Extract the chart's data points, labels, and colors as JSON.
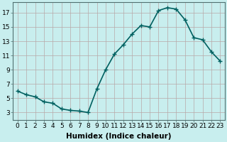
{
  "x": [
    0,
    1,
    2,
    3,
    4,
    5,
    6,
    7,
    8,
    9,
    10,
    11,
    12,
    13,
    14,
    15,
    16,
    17,
    18,
    19,
    20,
    21,
    22,
    23
  ],
  "y": [
    6.0,
    5.5,
    5.2,
    4.5,
    4.3,
    3.5,
    3.3,
    3.2,
    3.0,
    6.3,
    9.0,
    11.2,
    12.5,
    14.0,
    15.2,
    15.0,
    17.3,
    17.7,
    17.5,
    16.0,
    13.5,
    13.2,
    11.5,
    10.2
  ],
  "xlabel": "Humidex (Indice chaleur)",
  "line_color": "#006060",
  "marker_color": "#006060",
  "bg_color": "#c8eeee",
  "grid_color": "#b8a8a8",
  "xlim": [
    -0.5,
    23.5
  ],
  "ylim": [
    2.0,
    18.5
  ],
  "yticks": [
    3,
    5,
    7,
    9,
    11,
    13,
    15,
    17
  ],
  "xticks": [
    0,
    1,
    2,
    3,
    4,
    5,
    6,
    7,
    8,
    9,
    10,
    11,
    12,
    13,
    14,
    15,
    16,
    17,
    18,
    19,
    20,
    21,
    22,
    23
  ],
  "xlabel_fontsize": 7.5,
  "tick_fontsize": 6.5,
  "line_width": 1.2,
  "marker_size": 4
}
